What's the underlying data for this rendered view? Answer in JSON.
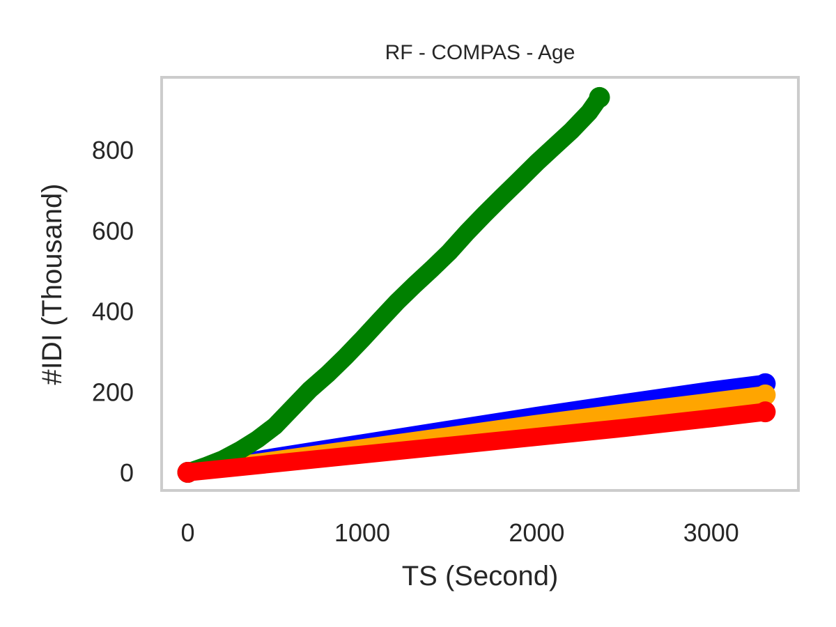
{
  "chart_data": {
    "type": "line",
    "title": "RF - COMPAS - Age",
    "xlabel": "TS (Second)",
    "ylabel": "#IDI (Thousand)",
    "xlim": [
      -150,
      3500
    ],
    "ylim": [
      -45,
      980
    ],
    "x_ticks": [
      0,
      1000,
      2000,
      3000
    ],
    "x_tick_labels": [
      "0",
      "1000",
      "2000",
      "3000"
    ],
    "y_ticks": [
      0,
      200,
      400,
      600,
      800
    ],
    "y_tick_labels": [
      "0",
      "200",
      "400",
      "600",
      "800"
    ],
    "grid": false,
    "legend": "none",
    "series": [
      {
        "color": "#0000ff",
        "x": [
          0,
          500,
          1000,
          1500,
          2000,
          2500,
          3000,
          3310
        ],
        "y": [
          0,
          38,
          72,
          106,
          140,
          172,
          203,
          220
        ]
      },
      {
        "color": "#ffa500",
        "x": [
          0,
          500,
          1000,
          1500,
          2000,
          2500,
          3000,
          3310
        ],
        "y": [
          0,
          30,
          60,
          90,
          120,
          148,
          175,
          192
        ]
      },
      {
        "color": "#008000",
        "x": [
          0,
          100,
          200,
          300,
          400,
          500,
          600,
          700,
          800,
          900,
          1000,
          1100,
          1200,
          1300,
          1400,
          1500,
          1600,
          1700,
          1800,
          1900,
          2000,
          2100,
          2200,
          2300,
          2360
        ],
        "y": [
          0,
          15,
          32,
          55,
          82,
          115,
          160,
          205,
          243,
          285,
          330,
          377,
          423,
          465,
          505,
          547,
          595,
          640,
          683,
          725,
          768,
          808,
          848,
          893,
          930
        ]
      },
      {
        "color": "#ff0000",
        "x": [
          0,
          500,
          1000,
          1500,
          2000,
          2500,
          3000,
          3310
        ],
        "y": [
          0,
          22,
          44,
          66,
          88,
          110,
          134,
          150
        ]
      }
    ]
  }
}
